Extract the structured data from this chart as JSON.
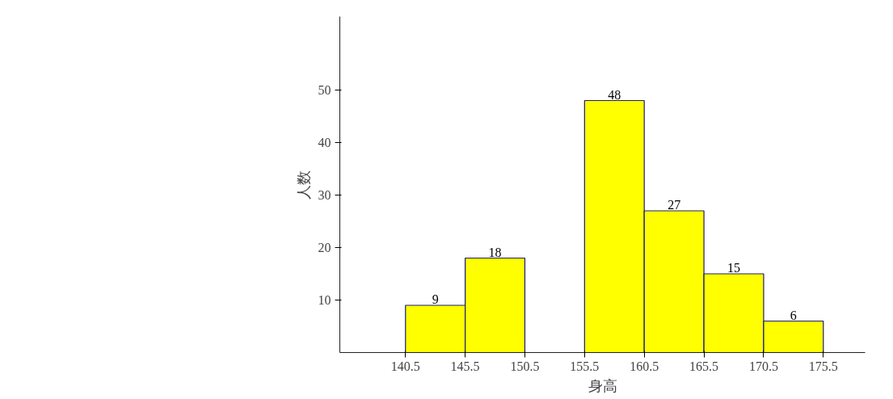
{
  "chart_data": {
    "type": "histogram",
    "xlabel": "身高",
    "ylabel": "人数",
    "bins": [
      140.5,
      145.5,
      150.5,
      155.5,
      160.5,
      165.5,
      170.5,
      175.5
    ],
    "values": [
      9,
      18,
      null,
      48,
      27,
      15,
      6
    ],
    "color": "#ffff00",
    "data_labels": true,
    "grid": false,
    "xlim": [
      135,
      179
    ],
    "xticks": [
      140.5,
      145.5,
      150.5,
      155.5,
      160.5,
      165.5,
      170.5,
      175.5
    ],
    "ylim": [
      0,
      64
    ],
    "yticks": [
      10,
      20,
      30,
      40,
      50
    ]
  }
}
